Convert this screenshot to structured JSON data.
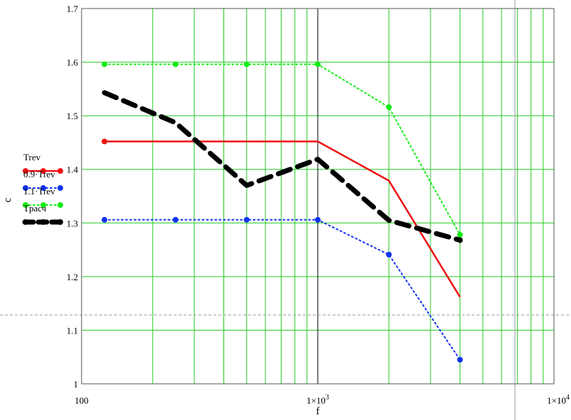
{
  "chart_data": {
    "type": "line",
    "xlabel": "f",
    "ylabel": "c",
    "xscale": "log",
    "xlim": [
      100,
      10000
    ],
    "ylim": [
      1.0,
      1.7
    ],
    "grid": true,
    "grid_color": "#22cc22",
    "legend_position": "left",
    "x_tick_labels": [
      {
        "value": 100,
        "text": "100",
        "sup": ""
      },
      {
        "value": 1000,
        "text": "1×10",
        "sup": "3"
      },
      {
        "value": 10000,
        "text": "1×10",
        "sup": "4"
      }
    ],
    "y_tick_labels": [
      "1",
      "1.1",
      "1.2",
      "1.3",
      "1.4",
      "1.5",
      "1.6",
      "1.7"
    ],
    "series": [
      {
        "name": "Trev",
        "color": "#ee1111",
        "style": "solid",
        "marker": "first-point-only",
        "x": [
          125,
          250,
          500,
          1000,
          2000,
          4000
        ],
        "y": [
          1.452,
          1.452,
          1.452,
          1.452,
          1.379,
          1.162
        ]
      },
      {
        "name": "0.9·Trev",
        "color": "#1133ee",
        "style": "dotted",
        "marker": "circle",
        "x": [
          125,
          250,
          500,
          1000,
          2000,
          4000
        ],
        "y": [
          1.306,
          1.306,
          1.306,
          1.306,
          1.241,
          1.045
        ]
      },
      {
        "name": "1.1·Trev",
        "color": "#11ee11",
        "style": "dotted",
        "marker": "circle",
        "x": [
          125,
          250,
          500,
          1000,
          2000,
          4000
        ],
        "y": [
          1.596,
          1.596,
          1.596,
          1.596,
          1.516,
          1.278
        ]
      },
      {
        "name": "Tрасч",
        "color": "#000000",
        "style": "dashed-thick",
        "marker": "last-point-only",
        "x": [
          125,
          250,
          500,
          1000,
          2000,
          4000
        ],
        "y": [
          1.543,
          1.487,
          1.37,
          1.419,
          1.305,
          1.268
        ]
      }
    ]
  }
}
